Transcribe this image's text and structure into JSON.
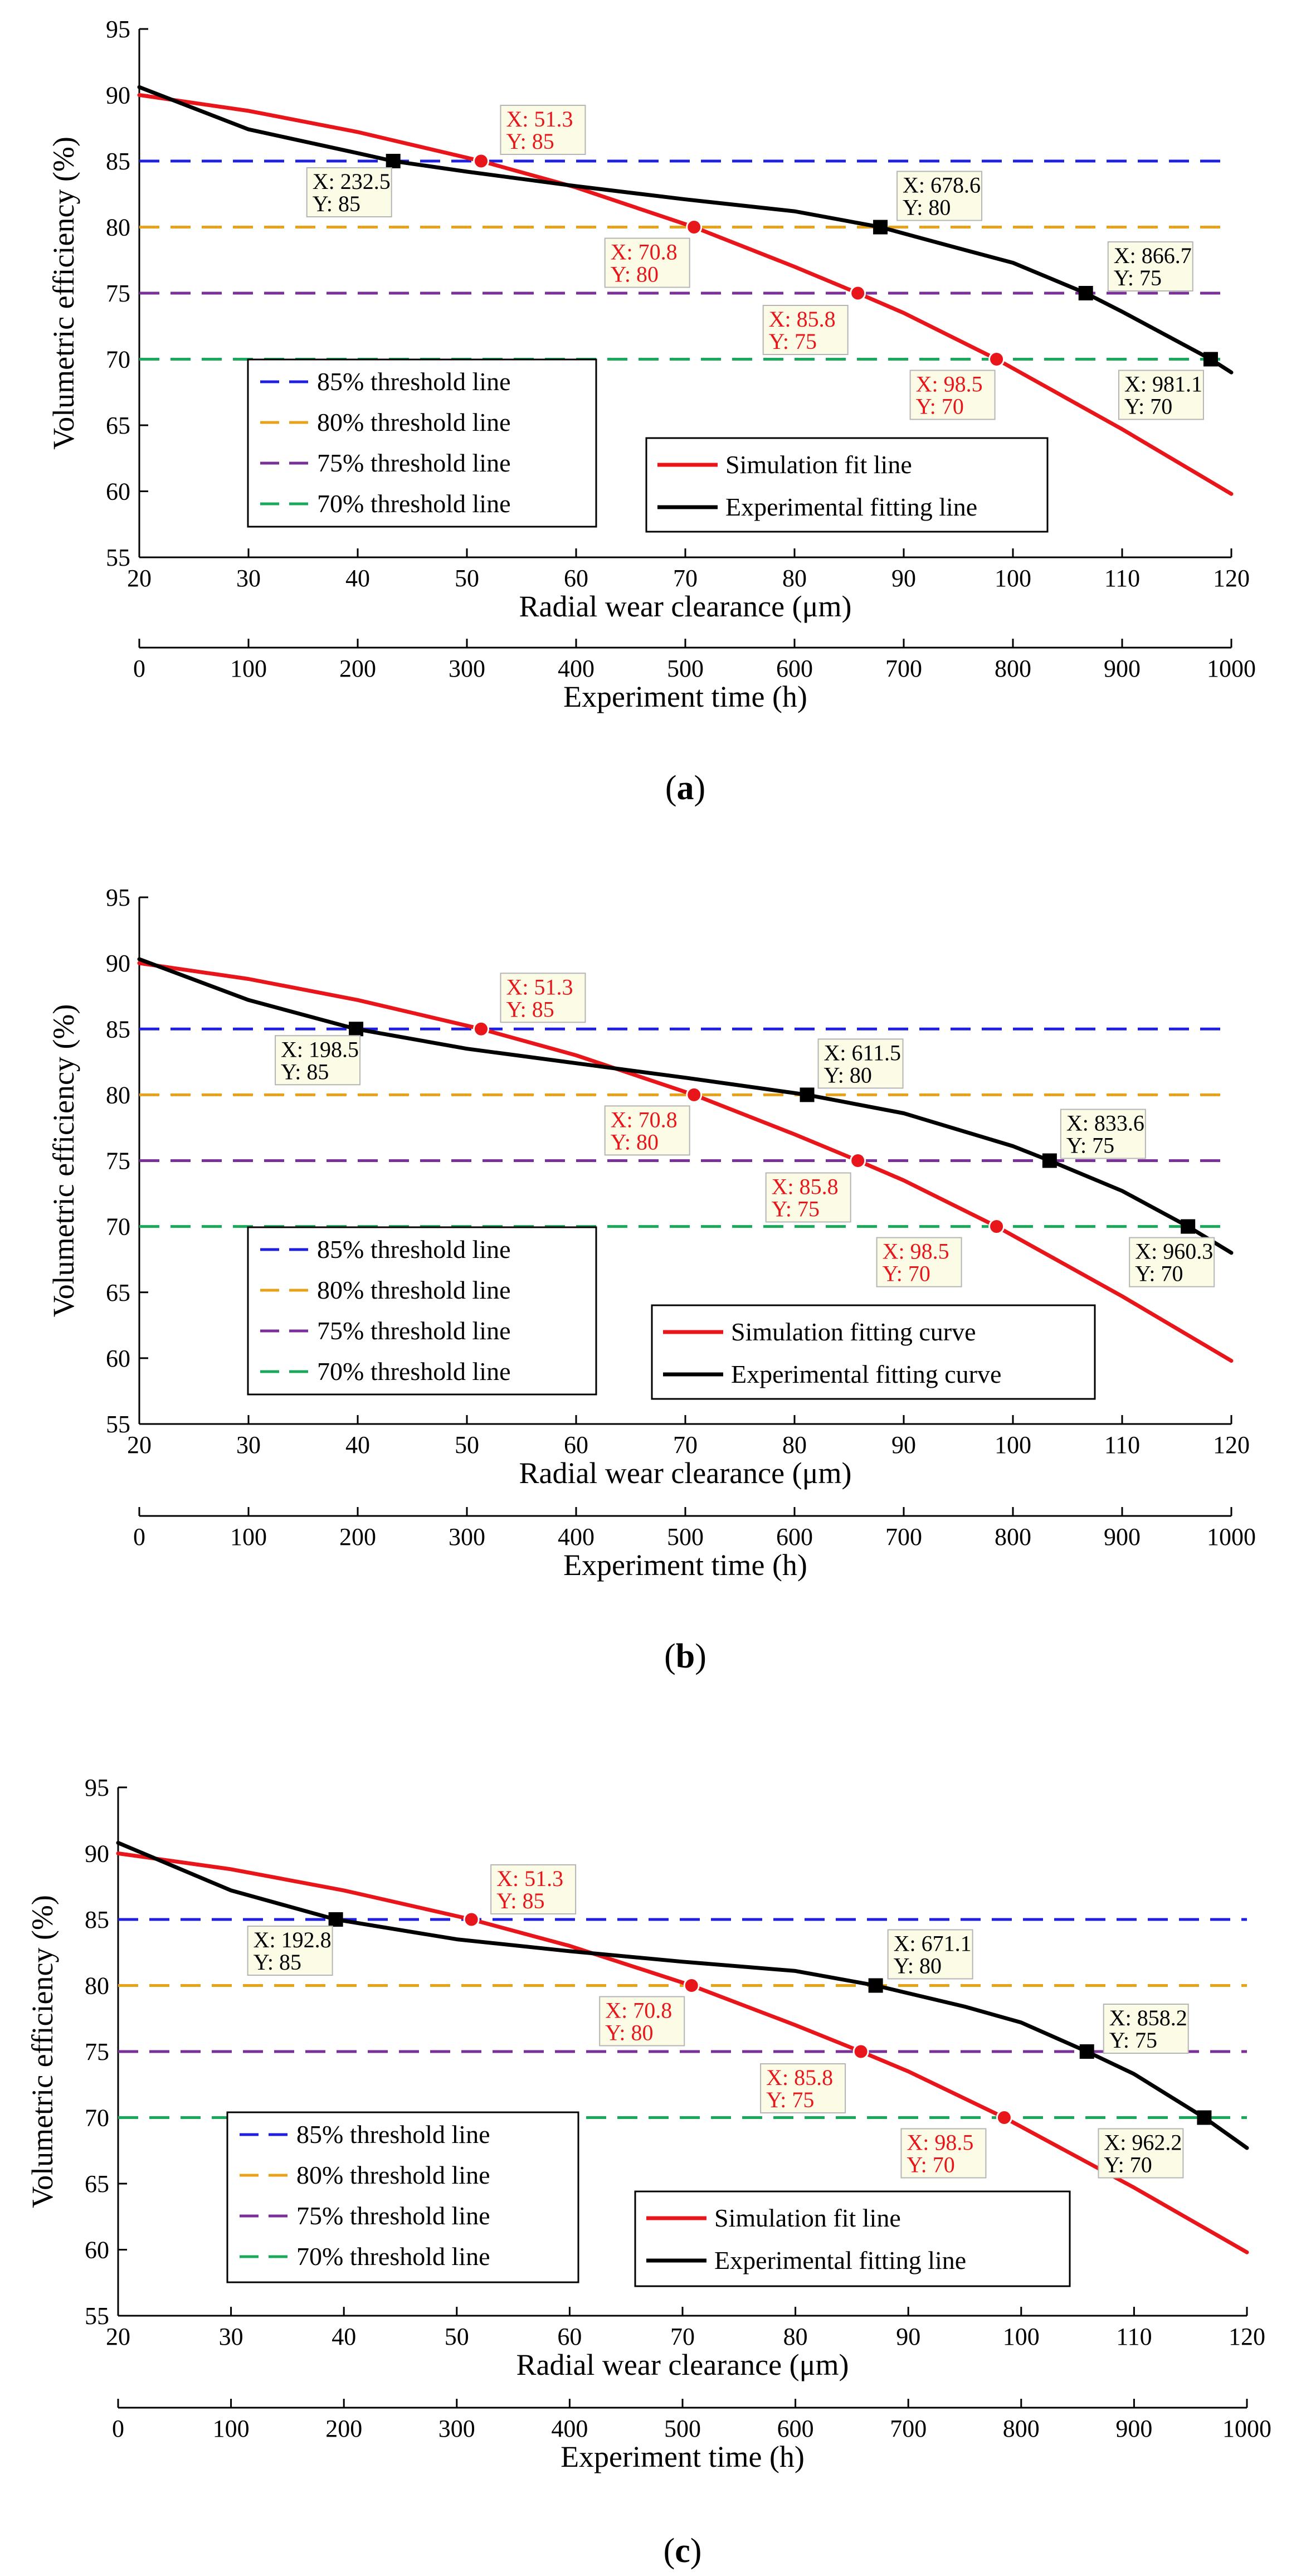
{
  "colors": {
    "t85": "#1f1fe0",
    "t80": "#e8a21a",
    "t75": "#7b2f9a",
    "t70": "#1aa85a",
    "simulation": "#e8161a",
    "experimental": "#000000",
    "label_bg": "#fbfbe6"
  },
  "chart_data": [
    {
      "type": "line",
      "panel_label": "(a)",
      "panel_letter": "a",
      "ylabel": "Volumetric efficiency (%)",
      "xlabel": "Radial wear clearance (μm)",
      "x2label": "Experiment time (h)",
      "xlim": [
        20,
        120
      ],
      "ylim": [
        55,
        95
      ],
      "x2lim": [
        0,
        1000
      ],
      "xticks": [
        20,
        30,
        40,
        50,
        60,
        70,
        80,
        90,
        100,
        110,
        120
      ],
      "yticks": [
        55,
        60,
        65,
        70,
        75,
        80,
        85,
        90,
        95
      ],
      "x2ticks": [
        0,
        100,
        200,
        300,
        400,
        500,
        600,
        700,
        800,
        900,
        1000
      ],
      "thresholds": [
        {
          "name": "85% threshold line",
          "y": 85,
          "color_key": "t85"
        },
        {
          "name": "80% threshold line",
          "y": 80,
          "color_key": "t80"
        },
        {
          "name": "75% threshold line",
          "y": 75,
          "color_key": "t75"
        },
        {
          "name": "70% threshold line",
          "y": 70,
          "color_key": "t70"
        }
      ],
      "series": [
        {
          "name": "Simulation fit line",
          "color_key": "simulation",
          "x": [
            20,
            30,
            40,
            51.3,
            60,
            70.8,
            80,
            85.8,
            90,
            98.5,
            110,
            120
          ],
          "y": [
            90,
            88.8,
            87.2,
            85,
            83,
            80,
            77,
            75,
            73.5,
            70,
            64.7,
            59.8
          ]
        },
        {
          "name": "Experimental fitting line",
          "color_key": "experimental",
          "x": [
            20,
            30,
            40,
            43.25,
            50,
            60,
            70,
            80,
            87.86,
            95,
            100,
            106.67,
            110,
            118.11,
            120
          ],
          "y": [
            90.6,
            87.4,
            85.6,
            85,
            84.2,
            83.1,
            82.1,
            81.2,
            80,
            78.4,
            77.3,
            75,
            73.6,
            70,
            69
          ]
        }
      ],
      "markers": {
        "simulation": [
          {
            "x": 51.3,
            "y": 85,
            "label_x": "X: 51.3",
            "label_y": "Y: 85"
          },
          {
            "x": 70.8,
            "y": 80,
            "label_x": "X: 70.8",
            "label_y": "Y: 80"
          },
          {
            "x": 85.8,
            "y": 75,
            "label_x": "X: 85.8",
            "label_y": "Y: 75"
          },
          {
            "x": 98.5,
            "y": 70,
            "label_x": "X: 98.5",
            "label_y": "Y: 70"
          }
        ],
        "experimental": [
          {
            "x": 43.25,
            "y": 85,
            "label_x": "X: 232.5",
            "label_y": "Y: 85"
          },
          {
            "x": 87.86,
            "y": 80,
            "label_x": "X: 678.6",
            "label_y": "Y: 80"
          },
          {
            "x": 106.67,
            "y": 75,
            "label_x": "X: 866.7",
            "label_y": "Y: 75"
          },
          {
            "x": 118.11,
            "y": 70,
            "label_x": "X: 981.1",
            "label_y": "Y: 70"
          }
        ]
      }
    },
    {
      "type": "line",
      "panel_label": "(b)",
      "panel_letter": "b",
      "ylabel": "Volumetric efficiency (%)",
      "xlabel": "Radial wear clearance (μm)",
      "x2label": "Experiment time (h)",
      "xlim": [
        20,
        120
      ],
      "ylim": [
        55,
        95
      ],
      "x2lim": [
        0,
        1000
      ],
      "xticks": [
        20,
        30,
        40,
        50,
        60,
        70,
        80,
        90,
        100,
        110,
        120
      ],
      "yticks": [
        55,
        60,
        65,
        70,
        75,
        80,
        85,
        90,
        95
      ],
      "x2ticks": [
        0,
        100,
        200,
        300,
        400,
        500,
        600,
        700,
        800,
        900,
        1000
      ],
      "thresholds": [
        {
          "name": "85% threshold line",
          "y": 85,
          "color_key": "t85"
        },
        {
          "name": "80% threshold line",
          "y": 80,
          "color_key": "t80"
        },
        {
          "name": "75% threshold line",
          "y": 75,
          "color_key": "t75"
        },
        {
          "name": "70% threshold line",
          "y": 70,
          "color_key": "t70"
        }
      ],
      "series": [
        {
          "name": "Simulation fitting curve",
          "color_key": "simulation",
          "x": [
            20,
            30,
            40,
            51.3,
            60,
            70.8,
            80,
            85.8,
            90,
            98.5,
            110,
            120
          ],
          "y": [
            90,
            88.8,
            87.2,
            85,
            83,
            80,
            77,
            75,
            73.5,
            70,
            64.7,
            59.8
          ]
        },
        {
          "name": "Experimental fitting curve",
          "color_key": "experimental",
          "x": [
            20,
            30,
            39.85,
            50,
            60,
            70,
            81.15,
            90,
            100,
            103.36,
            110,
            116.03,
            120
          ],
          "y": [
            90.3,
            87.2,
            85,
            83.5,
            82.4,
            81.3,
            80,
            78.6,
            76.1,
            75,
            72.7,
            70,
            68
          ]
        }
      ],
      "markers": {
        "simulation": [
          {
            "x": 51.3,
            "y": 85,
            "label_x": "X: 51.3",
            "label_y": "Y: 85"
          },
          {
            "x": 70.8,
            "y": 80,
            "label_x": "X: 70.8",
            "label_y": "Y: 80"
          },
          {
            "x": 85.8,
            "y": 75,
            "label_x": "X: 85.8",
            "label_y": "Y: 75"
          },
          {
            "x": 98.5,
            "y": 70,
            "label_x": "X: 98.5",
            "label_y": "Y: 70"
          }
        ],
        "experimental": [
          {
            "x": 39.85,
            "y": 85,
            "label_x": "X: 198.5",
            "label_y": "Y: 85"
          },
          {
            "x": 81.15,
            "y": 80,
            "label_x": "X: 611.5",
            "label_y": "Y: 80"
          },
          {
            "x": 103.36,
            "y": 75,
            "label_x": "X: 833.6",
            "label_y": "Y: 75"
          },
          {
            "x": 116.03,
            "y": 70,
            "label_x": "X: 960.3",
            "label_y": "Y: 70"
          }
        ]
      }
    },
    {
      "type": "line",
      "panel_label": "(c)",
      "panel_letter": "c",
      "ylabel": "Volumetric efficiency (%)",
      "xlabel": "Radial wear clearance (μm)",
      "x2label": "Experiment time (h)",
      "xlim": [
        20,
        120
      ],
      "ylim": [
        55,
        95
      ],
      "x2lim": [
        0,
        1000
      ],
      "xticks": [
        20,
        30,
        40,
        50,
        60,
        70,
        80,
        90,
        100,
        110,
        120
      ],
      "yticks": [
        55,
        60,
        65,
        70,
        75,
        80,
        85,
        90,
        95
      ],
      "x2ticks": [
        0,
        100,
        200,
        300,
        400,
        500,
        600,
        700,
        800,
        900,
        1000
      ],
      "thresholds": [
        {
          "name": "85% threshold line",
          "y": 85,
          "color_key": "t85"
        },
        {
          "name": "80% threshold line",
          "y": 80,
          "color_key": "t80"
        },
        {
          "name": "75% threshold line",
          "y": 75,
          "color_key": "t75"
        },
        {
          "name": "70% threshold line",
          "y": 70,
          "color_key": "t70"
        }
      ],
      "series": [
        {
          "name": "Simulation fit line",
          "color_key": "simulation",
          "x": [
            20,
            30,
            40,
            51.3,
            60,
            70.8,
            80,
            85.8,
            90,
            98.5,
            110,
            120
          ],
          "y": [
            90,
            88.8,
            87.2,
            85,
            83,
            80,
            77,
            75,
            73.5,
            70,
            64.7,
            59.8
          ]
        },
        {
          "name": "Experimental fitting line",
          "color_key": "experimental",
          "x": [
            20,
            30,
            39.28,
            50,
            60,
            70,
            80,
            87.11,
            95,
            100,
            105.82,
            110,
            116.22,
            120
          ],
          "y": [
            90.8,
            87.2,
            85,
            83.5,
            82.6,
            81.8,
            81.1,
            80,
            78.4,
            77.2,
            75,
            73.3,
            70,
            67.7
          ]
        }
      ],
      "markers": {
        "simulation": [
          {
            "x": 51.3,
            "y": 85,
            "label_x": "X: 51.3",
            "label_y": "Y: 85"
          },
          {
            "x": 70.8,
            "y": 80,
            "label_x": "X: 70.8",
            "label_y": "Y: 80"
          },
          {
            "x": 85.8,
            "y": 75,
            "label_x": "X: 85.8",
            "label_y": "Y: 75"
          },
          {
            "x": 98.5,
            "y": 70,
            "label_x": "X: 98.5",
            "label_y": "Y: 70"
          }
        ],
        "experimental": [
          {
            "x": 39.28,
            "y": 85,
            "label_x": "X: 192.8",
            "label_y": "Y: 85"
          },
          {
            "x": 87.11,
            "y": 80,
            "label_x": "X: 671.1",
            "label_y": "Y: 80"
          },
          {
            "x": 105.82,
            "y": 75,
            "label_x": "X: 858.2",
            "label_y": "Y: 75"
          },
          {
            "x": 116.22,
            "y": 70,
            "label_x": "X: 962.2",
            "label_y": "Y: 70"
          }
        ]
      }
    }
  ]
}
